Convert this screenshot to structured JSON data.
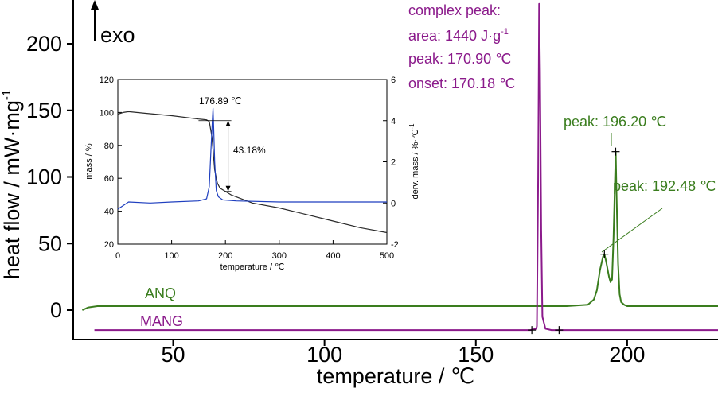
{
  "chart_data": [
    {
      "type": "line",
      "xlabel": "temperature / ℃",
      "ylabel": "heat flow / mW·mg",
      "ylabel_sup": "-1",
      "xlim": [
        17,
        230
      ],
      "ylim": [
        -20,
        230
      ],
      "xticks": [
        50,
        100,
        150,
        200
      ],
      "yticks": [
        0,
        50,
        100,
        150,
        200
      ],
      "exo_label": "exo",
      "series": [
        {
          "name": "ANQ",
          "color": "#3a7d1e",
          "x": [
            20,
            22,
            25,
            50,
            100,
            150,
            180,
            187,
            189,
            190,
            191,
            192,
            192.48,
            193,
            194,
            194.5,
            195,
            195.5,
            196,
            196.2,
            196.5,
            197,
            197.5,
            198,
            199,
            200,
            205,
            230
          ],
          "y": [
            0,
            2,
            3,
            3,
            3,
            3,
            3,
            4,
            8,
            15,
            30,
            40,
            42,
            37,
            25,
            21,
            23,
            55,
            100,
            119,
            85,
            35,
            12,
            6,
            4,
            3,
            3,
            3
          ]
        },
        {
          "name": "MANG",
          "color": "#8b1a8b",
          "x": [
            24,
            100,
            168,
            170,
            170.18,
            170.6,
            170.9,
            171.2,
            171.6,
            172,
            173,
            175,
            177.5,
            230
          ],
          "y": [
            -15,
            -15,
            -15,
            -14,
            -12,
            100,
            230,
            180,
            60,
            -5,
            -14,
            -15,
            -15,
            -15
          ]
        }
      ],
      "markers": [
        {
          "series": "ANQ",
          "x": 192.48,
          "y": 42
        },
        {
          "series": "ANQ",
          "x": 196.2,
          "y": 119
        },
        {
          "series": "MANG",
          "x": 168.5,
          "y": -15
        },
        {
          "series": "MANG",
          "x": 177.5,
          "y": -15
        }
      ],
      "annotations": {
        "anq_label": "ANQ",
        "mang_label": "MANG",
        "peak_196": "peak: 196.20 ℃",
        "peak_192": "peak: 192.48 ℃",
        "complex_title": "complex peak:",
        "complex_area": "area: 1440 J·g",
        "complex_area_sup": "-1",
        "complex_peak": "peak: 170.90 ℃",
        "complex_onset": "onset: 170.18 ℃"
      }
    },
    {
      "type": "line",
      "title": "",
      "xlabel": "temperature / ℃",
      "ylabel_left": "mass / %",
      "ylabel_right": "derv. mass / %·℃",
      "ylabel_right_sup": "-1",
      "xlim": [
        0,
        500
      ],
      "ylim_left": [
        20,
        120
      ],
      "ylim_right": [
        -2,
        6
      ],
      "xticks": [
        0,
        100,
        200,
        300,
        400,
        500
      ],
      "yticks_left": [
        20,
        40,
        60,
        80,
        100,
        120
      ],
      "yticks_right": [
        -2,
        0,
        2,
        4,
        6
      ],
      "series": [
        {
          "name": "mass",
          "color": "#2a2a2a",
          "axis": "left",
          "x": [
            0,
            10,
            20,
            50,
            100,
            150,
            165,
            170,
            175,
            180,
            185,
            190,
            200,
            210,
            250,
            300,
            350,
            400,
            450,
            500
          ],
          "y": [
            99,
            100,
            100.5,
            99.5,
            98,
            96,
            95.5,
            94.5,
            85,
            65,
            57,
            54,
            52,
            50,
            45,
            42,
            38,
            34,
            30,
            27
          ]
        },
        {
          "name": "derivative",
          "color": "#1f3fbf",
          "axis": "right",
          "x": [
            0,
            20,
            60,
            100,
            150,
            165,
            170,
            173,
            176,
            176.89,
            178,
            180,
            183,
            187,
            195,
            220,
            300,
            400,
            500
          ],
          "y": [
            -0.3,
            0.05,
            0,
            0.05,
            0.1,
            0.2,
            0.8,
            2.5,
            4.2,
            4.6,
            3.8,
            2.0,
            0.6,
            0.3,
            0.15,
            0.1,
            0.05,
            0.05,
            0.05
          ]
        }
      ],
      "annotations": {
        "peak_temp": "176.89 ℃",
        "mass_loss": "43.18%"
      },
      "step": {
        "x": 205,
        "y_top": 95,
        "y_bottom": 52
      }
    }
  ]
}
